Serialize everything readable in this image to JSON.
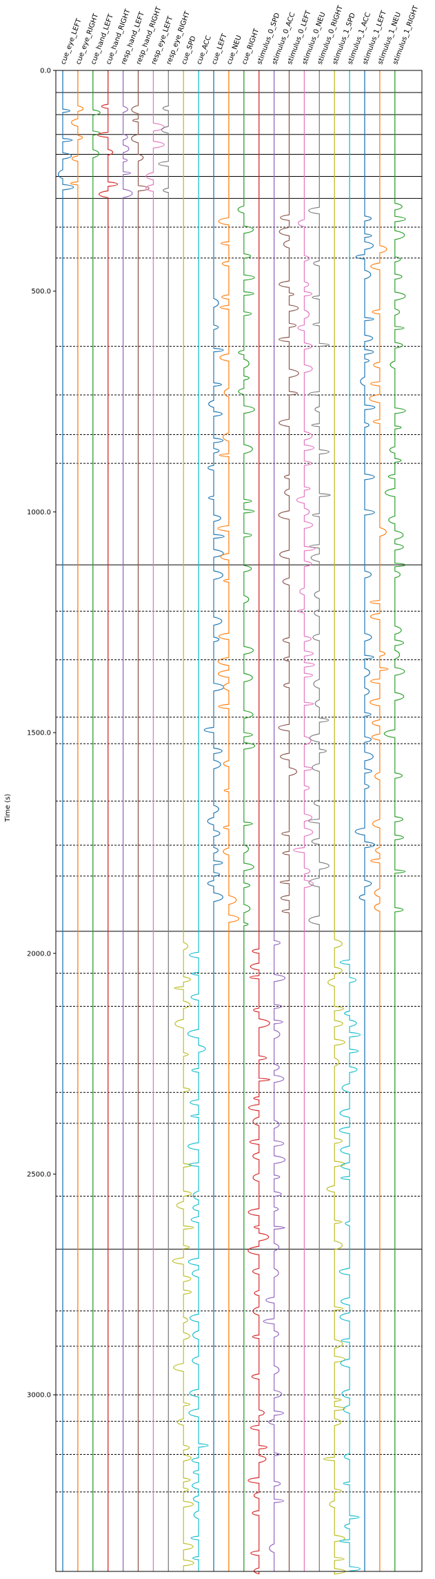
{
  "chart_data": {
    "type": "line",
    "title": "",
    "xlabel": "",
    "ylabel": "Time (s)",
    "ylim": [
      0.0,
      3400.0
    ],
    "y_inverted": true,
    "yticks": [
      0.0,
      500.0,
      1000.0,
      1500.0,
      2000.0,
      2500.0,
      3000.0
    ],
    "ytick_labels": [
      "0.0",
      "500.0",
      "1000.0",
      "1500.0",
      "2000.0",
      "2500.0",
      "3000.0"
    ],
    "grid": false,
    "legend": "none",
    "channels": [
      {
        "name": "cue_eye_LEFT",
        "color": "#1f77b4"
      },
      {
        "name": "cue_eye_RIGHT",
        "color": "#ff7f0e"
      },
      {
        "name": "cue_hand_LEFT",
        "color": "#2ca02c"
      },
      {
        "name": "cue_hand_RIGHT",
        "color": "#d62728"
      },
      {
        "name": "resp_hand_LEFT",
        "color": "#9467bd"
      },
      {
        "name": "resp_hand_RIGHT",
        "color": "#8c564b"
      },
      {
        "name": "resp_eye_LEFT",
        "color": "#e377c2"
      },
      {
        "name": "resp_eye_RIGHT",
        "color": "#7f7f7f"
      },
      {
        "name": "cue_SPD",
        "color": "#bcbd22"
      },
      {
        "name": "cue_ACC",
        "color": "#17becf"
      },
      {
        "name": "cue_LEFT",
        "color": "#1f77b4"
      },
      {
        "name": "cue_NEU",
        "color": "#ff7f0e"
      },
      {
        "name": "cue_RIGHT",
        "color": "#2ca02c"
      },
      {
        "name": "stimulus_0_SPD",
        "color": "#d62728"
      },
      {
        "name": "stimulus_0_ACC",
        "color": "#9467bd"
      },
      {
        "name": "stimulus_0_LEFT",
        "color": "#8c564b"
      },
      {
        "name": "stimulus_0_NEU",
        "color": "#e377c2"
      },
      {
        "name": "stimulus_0_RIGHT",
        "color": "#7f7f7f"
      },
      {
        "name": "stimulus_1_SPD",
        "color": "#bcbd22"
      },
      {
        "name": "stimulus_1_ACC",
        "color": "#17becf"
      },
      {
        "name": "stimulus_1_LEFT",
        "color": "#1f77b4"
      },
      {
        "name": "stimulus_1_NEU",
        "color": "#ff7f0e"
      },
      {
        "name": "stimulus_1_RIGHT",
        "color": "#2ca02c"
      }
    ],
    "solid_hlines": [
      50,
      100,
      145,
      190,
      240,
      290,
      1120,
      1950,
      2670
    ],
    "dashed_hlines": [
      355,
      425,
      625,
      735,
      825,
      890,
      1225,
      1335,
      1465,
      1525,
      1655,
      1755,
      1825,
      2045,
      2120,
      2250,
      2315,
      2385,
      2550,
      2810,
      2890,
      3000,
      3060,
      3135,
      3220
    ],
    "blocks": [
      {
        "t0": 50,
        "t1": 290,
        "channels": [
          "cue_eye_LEFT",
          "cue_eye_RIGHT",
          "cue_hand_LEFT",
          "cue_hand_RIGHT",
          "resp_hand_LEFT",
          "resp_hand_RIGHT",
          "resp_eye_LEFT",
          "resp_eye_RIGHT"
        ]
      },
      {
        "t0": 290,
        "t1": 1950,
        "channels": [
          "cue_LEFT",
          "cue_NEU",
          "cue_RIGHT",
          "stimulus_0_LEFT",
          "stimulus_0_NEU",
          "stimulus_0_RIGHT",
          "stimulus_1_LEFT",
          "stimulus_1_NEU",
          "stimulus_1_RIGHT"
        ]
      },
      {
        "t0": 1950,
        "t1": 3400,
        "channels": [
          "cue_SPD",
          "cue_ACC",
          "stimulus_0_SPD",
          "stimulus_0_ACC",
          "stimulus_1_SPD",
          "stimulus_1_ACC"
        ]
      }
    ]
  }
}
